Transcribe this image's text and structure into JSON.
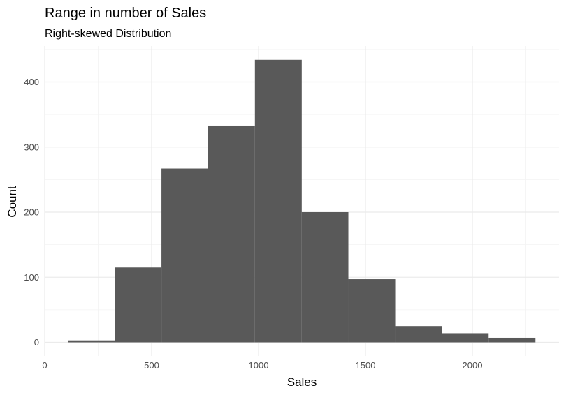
{
  "chart_data": {
    "type": "bar",
    "title": "Range in number of Sales",
    "subtitle": "Right-skewed Distribution",
    "xlabel": "Sales",
    "ylabel": "Count",
    "xlim": [
      0,
      2400
    ],
    "ylim": [
      0,
      460
    ],
    "x_ticks": [
      0,
      500,
      1000,
      1500,
      2000
    ],
    "y_ticks": [
      0,
      100,
      200,
      300,
      400
    ],
    "grid": true,
    "bar_color": "#595959",
    "bins": [
      {
        "start": 108,
        "end": 327,
        "count": 3
      },
      {
        "start": 327,
        "end": 546,
        "count": 115
      },
      {
        "start": 546,
        "end": 764,
        "count": 267
      },
      {
        "start": 764,
        "end": 983,
        "count": 333
      },
      {
        "start": 983,
        "end": 1202,
        "count": 434
      },
      {
        "start": 1202,
        "end": 1420,
        "count": 200
      },
      {
        "start": 1420,
        "end": 1639,
        "count": 97
      },
      {
        "start": 1639,
        "end": 1858,
        "count": 25
      },
      {
        "start": 1858,
        "end": 2076,
        "count": 14
      },
      {
        "start": 2076,
        "end": 2295,
        "count": 7
      }
    ]
  }
}
